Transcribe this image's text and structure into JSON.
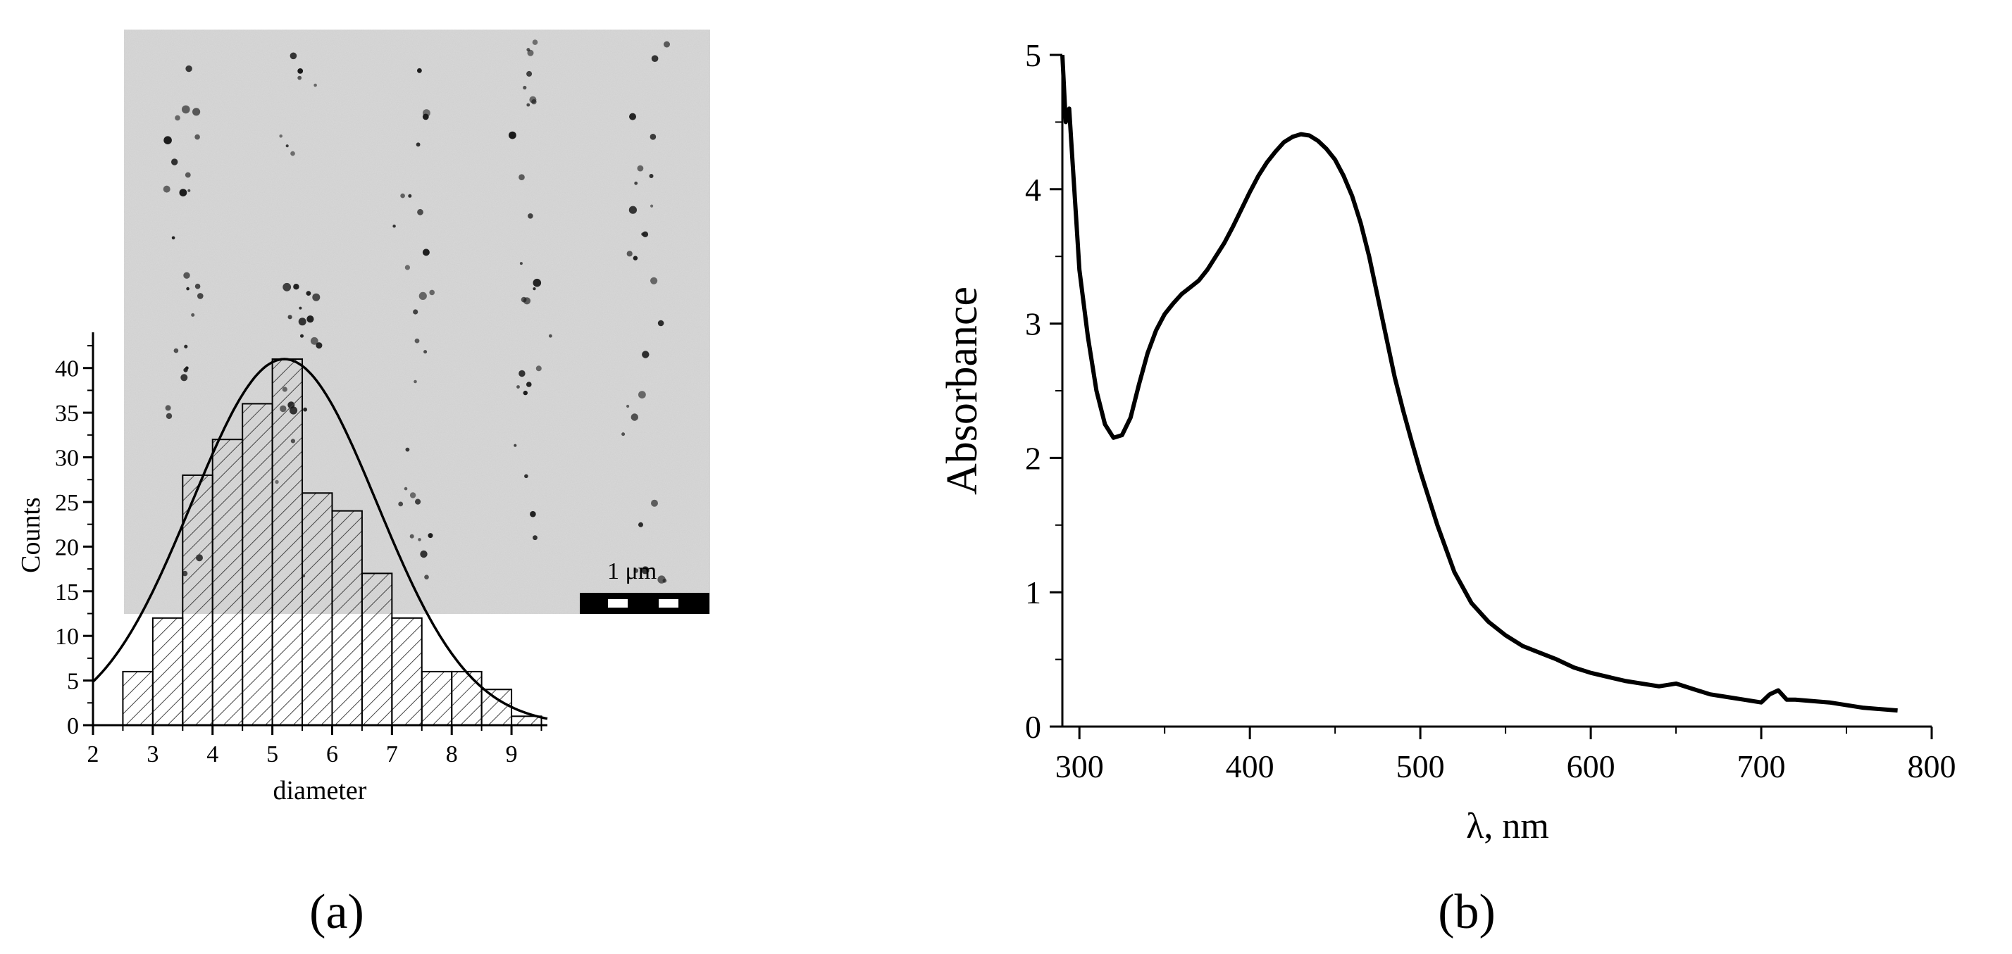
{
  "chart_data": [
    {
      "panel": "a",
      "type": "bar",
      "caption": "(a)",
      "xlabel": "diameter",
      "ylabel": "Counts",
      "xlim": [
        2,
        9.6
      ],
      "ylim": [
        0,
        44
      ],
      "xticks": [
        2,
        3,
        4,
        5,
        6,
        7,
        8,
        9
      ],
      "yticks": [
        0,
        5,
        10,
        15,
        20,
        25,
        30,
        35,
        40
      ],
      "bin_width": 0.5,
      "bins": [
        {
          "x": 2.5,
          "count": 6
        },
        {
          "x": 3.0,
          "count": 12
        },
        {
          "x": 3.5,
          "count": 28
        },
        {
          "x": 4.0,
          "count": 32
        },
        {
          "x": 4.5,
          "count": 36
        },
        {
          "x": 5.0,
          "count": 41
        },
        {
          "x": 5.5,
          "count": 26
        },
        {
          "x": 6.0,
          "count": 24
        },
        {
          "x": 6.5,
          "count": 17
        },
        {
          "x": 7.0,
          "count": 12
        },
        {
          "x": 7.5,
          "count": 6
        },
        {
          "x": 8.0,
          "count": 6
        },
        {
          "x": 8.5,
          "count": 4
        },
        {
          "x": 9.0,
          "count": 1
        }
      ],
      "fit": {
        "type": "gaussian",
        "center": 5.2,
        "sigma": 1.55,
        "amplitude": 41
      },
      "inset_image": {
        "description_label": "TEM micrograph",
        "scale_bar_label": "1 μm"
      }
    },
    {
      "panel": "b",
      "type": "line",
      "caption": "(b)",
      "xlabel": "λ, nm",
      "ylabel": "Absorbance",
      "xlim": [
        290,
        800
      ],
      "ylim": [
        0,
        5
      ],
      "xticks": [
        300,
        400,
        500,
        600,
        700,
        800
      ],
      "yticks": [
        0,
        1,
        2,
        3,
        4,
        5
      ],
      "series": [
        {
          "name": "Absorbance",
          "x": [
            290,
            292,
            294,
            296,
            298,
            300,
            305,
            310,
            315,
            320,
            325,
            330,
            335,
            340,
            345,
            350,
            355,
            360,
            365,
            370,
            375,
            380,
            385,
            390,
            395,
            400,
            405,
            410,
            415,
            420,
            425,
            430,
            435,
            440,
            445,
            450,
            455,
            460,
            465,
            470,
            475,
            480,
            485,
            490,
            495,
            500,
            510,
            520,
            530,
            540,
            550,
            560,
            570,
            580,
            590,
            600,
            620,
            640,
            650,
            660,
            670,
            680,
            690,
            700,
            705,
            710,
            715,
            720,
            740,
            760,
            780
          ],
          "y": [
            5.0,
            4.5,
            4.6,
            4.2,
            3.8,
            3.4,
            2.9,
            2.5,
            2.25,
            2.15,
            2.17,
            2.3,
            2.55,
            2.78,
            2.95,
            3.07,
            3.15,
            3.22,
            3.27,
            3.32,
            3.4,
            3.5,
            3.6,
            3.72,
            3.85,
            3.98,
            4.1,
            4.2,
            4.28,
            4.35,
            4.39,
            4.41,
            4.4,
            4.36,
            4.3,
            4.22,
            4.1,
            3.95,
            3.75,
            3.5,
            3.2,
            2.9,
            2.6,
            2.35,
            2.12,
            1.9,
            1.5,
            1.15,
            0.92,
            0.78,
            0.68,
            0.6,
            0.55,
            0.5,
            0.44,
            0.4,
            0.34,
            0.3,
            0.32,
            0.28,
            0.24,
            0.22,
            0.2,
            0.18,
            0.24,
            0.27,
            0.2,
            0.2,
            0.18,
            0.14,
            0.12
          ]
        }
      ]
    }
  ]
}
